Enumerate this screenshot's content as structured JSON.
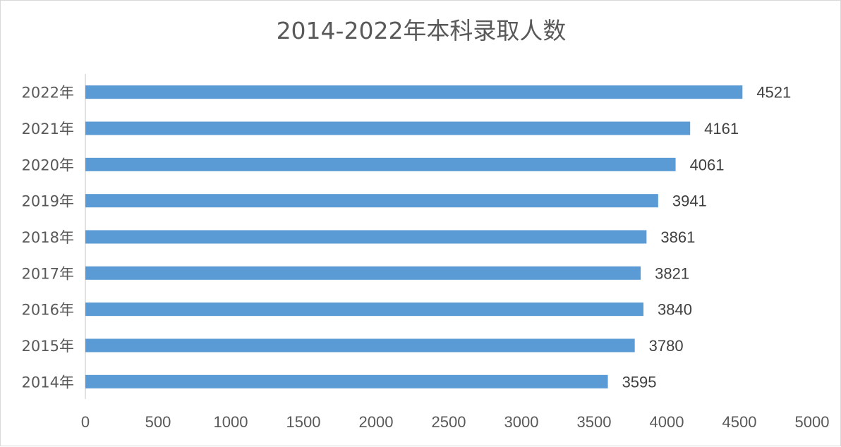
{
  "chart_data": {
    "type": "bar",
    "orientation": "horizontal",
    "title": "2014-2022年本科录取人数",
    "xlabel": "",
    "ylabel": "",
    "categories": [
      "2022年",
      "2021年",
      "2020年",
      "2019年",
      "2018年",
      "2017年",
      "2016年",
      "2015年",
      "2014年"
    ],
    "values": [
      4521,
      4161,
      4061,
      3941,
      3861,
      3821,
      3840,
      3780,
      3595
    ],
    "xlim": [
      0,
      5000
    ],
    "xticks": [
      0,
      500,
      1000,
      1500,
      2000,
      2500,
      3000,
      3500,
      4000,
      4500,
      5000
    ],
    "grid": false,
    "legend": "none",
    "data_labels": true,
    "bar_color": "#5b9bd5"
  }
}
